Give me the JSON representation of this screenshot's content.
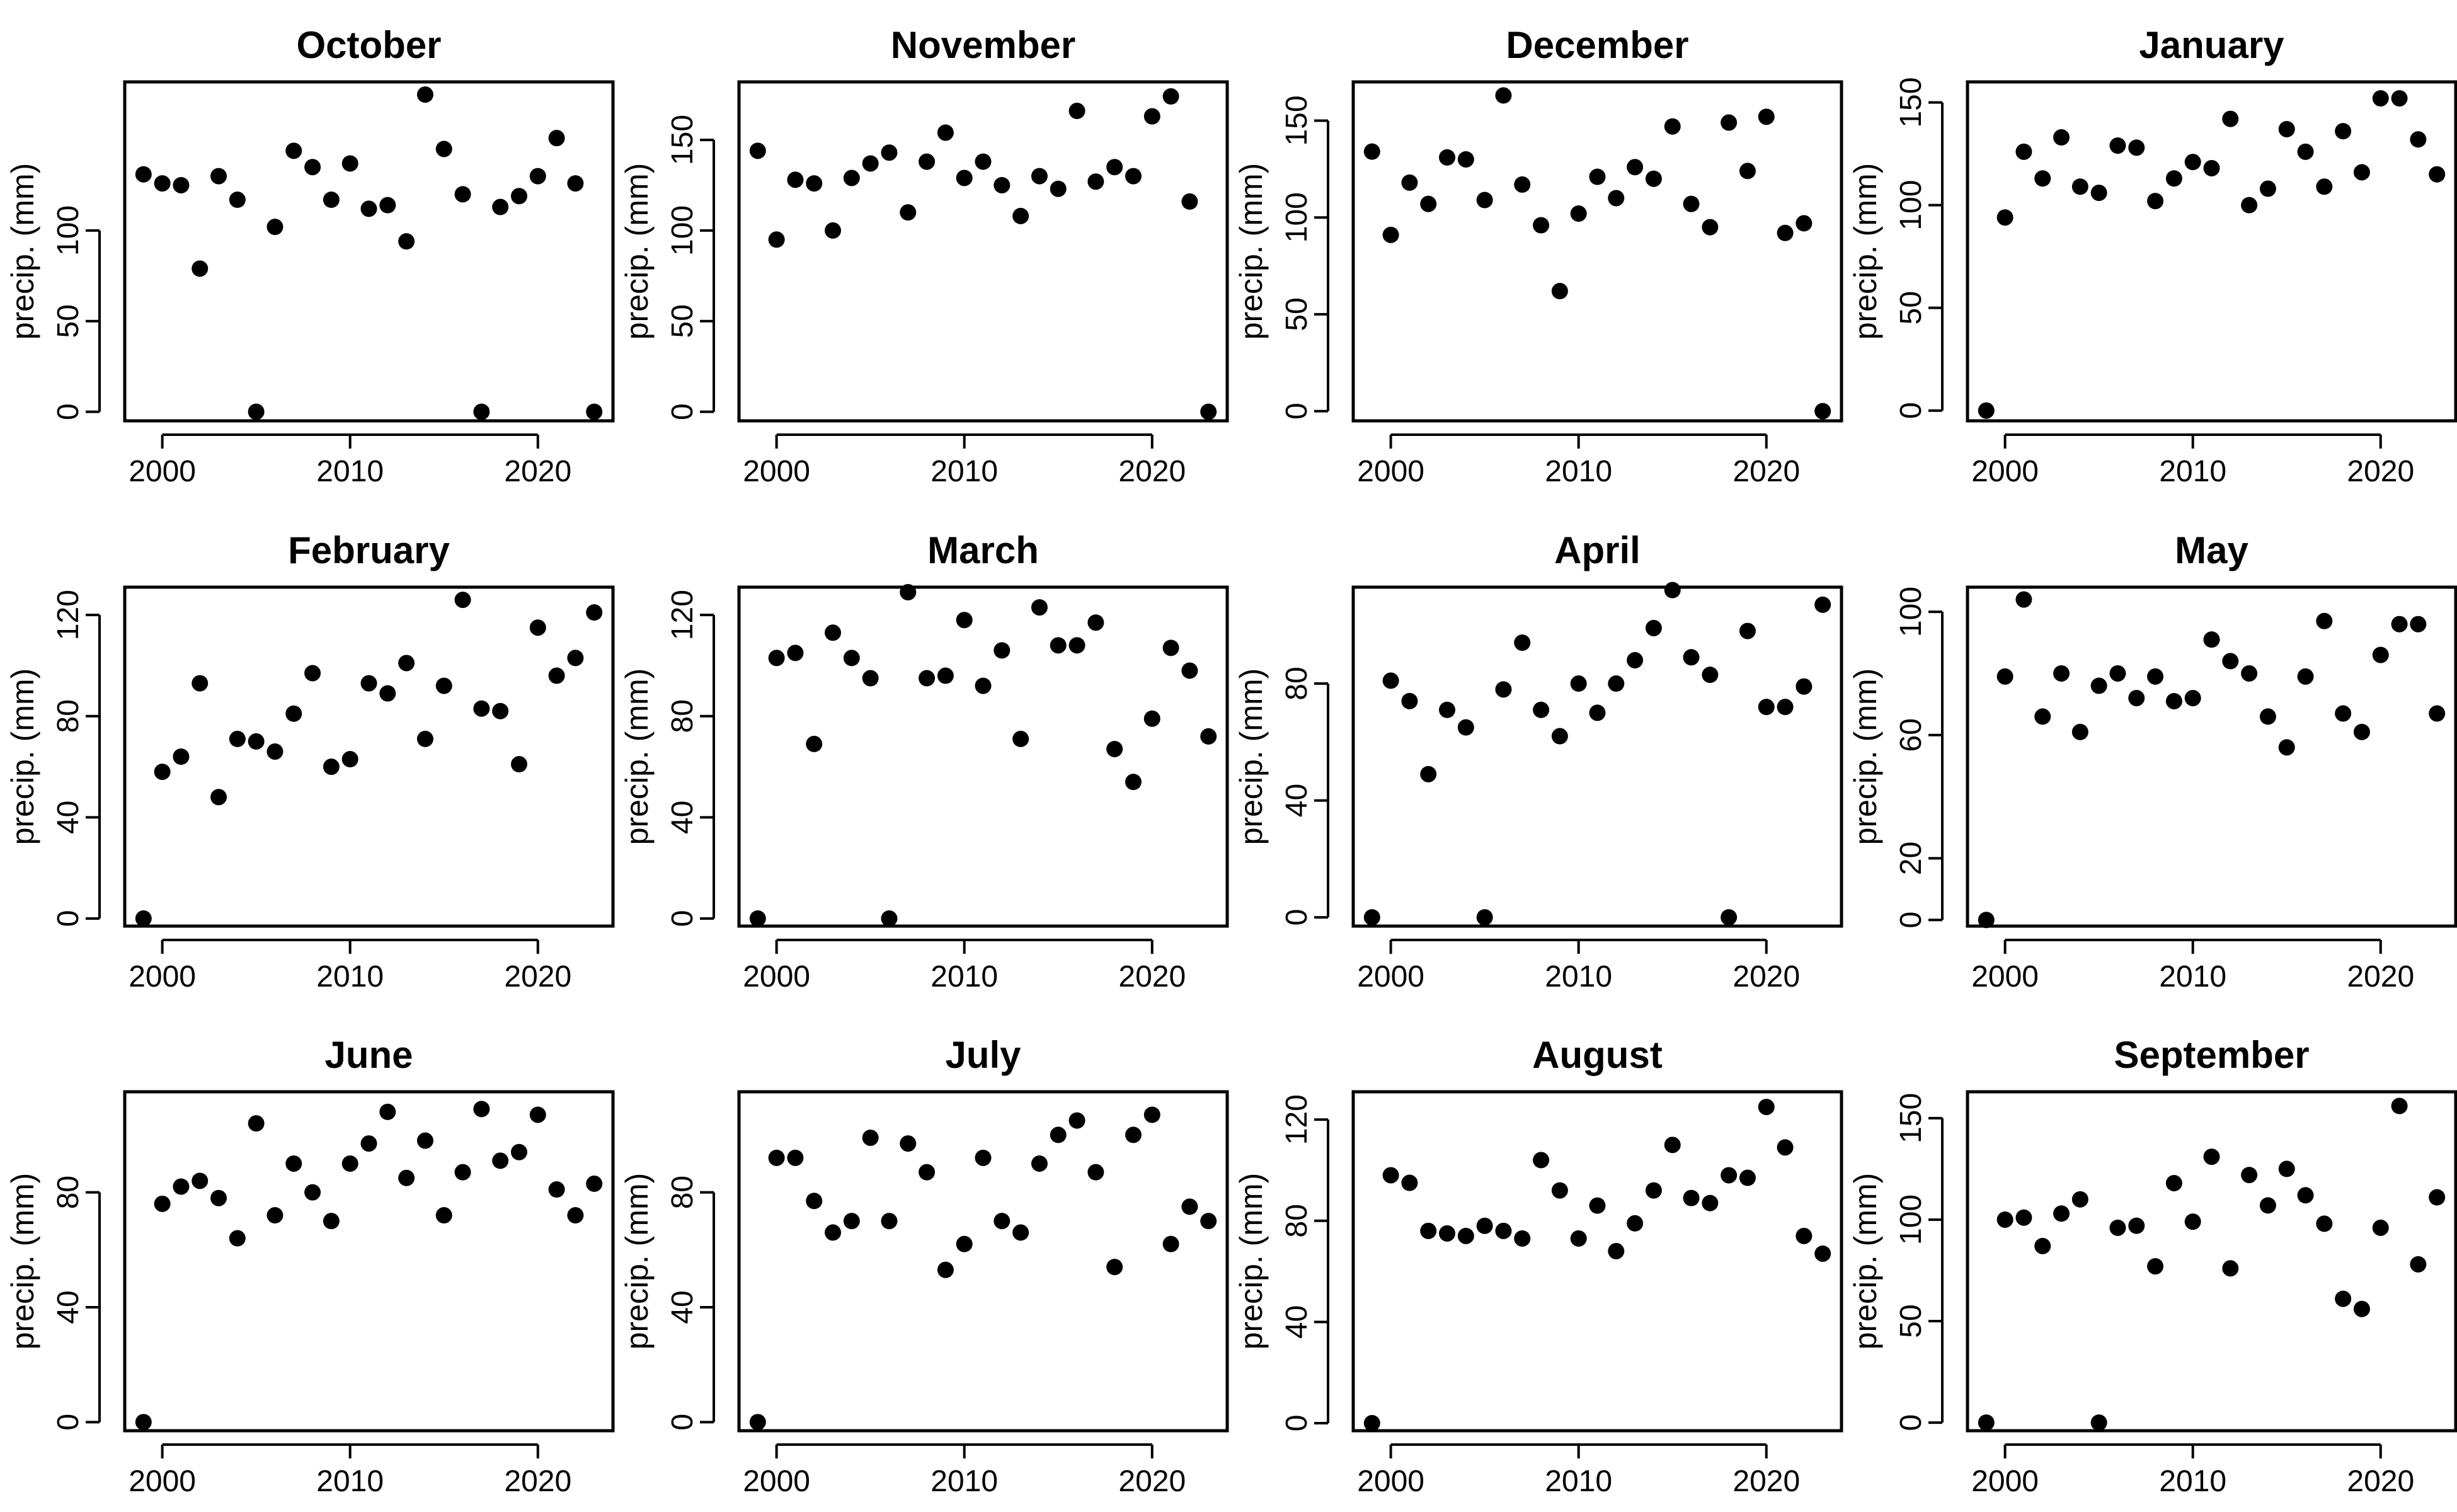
{
  "chart_data": [
    {
      "type": "scatter",
      "title": "October",
      "ylabel": "precip. (mm)",
      "xlim": [
        1998,
        2024
      ],
      "ylim": [
        -5,
        182
      ],
      "x_ticks": [
        2000,
        2010,
        2020
      ],
      "y_ticks": [
        0,
        50,
        100
      ],
      "x": [
        1999,
        2000,
        2001,
        2002,
        2003,
        2004,
        2005,
        2006,
        2007,
        2008,
        2009,
        2010,
        2011,
        2012,
        2013,
        2014,
        2015,
        2016,
        2017,
        2018,
        2019,
        2020,
        2021,
        2022,
        2023
      ],
      "y": [
        131,
        126,
        125,
        79,
        130,
        117,
        0,
        102,
        144,
        135,
        117,
        137,
        112,
        114,
        94,
        175,
        145,
        120,
        0,
        113,
        119,
        130,
        151,
        126,
        0
      ]
    },
    {
      "type": "scatter",
      "title": "November",
      "ylabel": "precip. (mm)",
      "xlim": [
        1998,
        2024
      ],
      "ylim": [
        -5,
        182
      ],
      "x_ticks": [
        2000,
        2010,
        2020
      ],
      "y_ticks": [
        0,
        50,
        100,
        150
      ],
      "x": [
        1999,
        2000,
        2001,
        2002,
        2003,
        2004,
        2005,
        2006,
        2007,
        2008,
        2009,
        2010,
        2011,
        2012,
        2013,
        2014,
        2015,
        2016,
        2017,
        2018,
        2019,
        2020,
        2021,
        2022,
        2023
      ],
      "y": [
        144,
        95,
        128,
        126,
        100,
        129,
        137,
        143,
        110,
        138,
        154,
        129,
        138,
        125,
        108,
        130,
        123,
        166,
        127,
        135,
        130,
        163,
        174,
        116,
        0
      ]
    },
    {
      "type": "scatter",
      "title": "December",
      "ylabel": "precip. (mm)",
      "xlim": [
        1998,
        2024
      ],
      "ylim": [
        -5,
        170
      ],
      "x_ticks": [
        2000,
        2010,
        2020
      ],
      "y_ticks": [
        0,
        50,
        100,
        150
      ],
      "x": [
        1999,
        2000,
        2001,
        2002,
        2003,
        2004,
        2005,
        2006,
        2007,
        2008,
        2009,
        2010,
        2011,
        2012,
        2013,
        2014,
        2015,
        2016,
        2017,
        2018,
        2019,
        2020,
        2021,
        2022,
        2023
      ],
      "y": [
        134,
        91,
        118,
        107,
        131,
        130,
        109,
        163,
        117,
        96,
        62,
        102,
        121,
        110,
        126,
        120,
        147,
        107,
        95,
        149,
        124,
        152,
        92,
        97,
        0
      ]
    },
    {
      "type": "scatter",
      "title": "January",
      "ylabel": "precip. (mm)",
      "xlim": [
        1998,
        2024
      ],
      "ylim": [
        -5,
        160
      ],
      "x_ticks": [
        2000,
        2010,
        2020
      ],
      "y_ticks": [
        0,
        50,
        100,
        150
      ],
      "x": [
        1999,
        2000,
        2001,
        2002,
        2003,
        2004,
        2005,
        2006,
        2007,
        2008,
        2009,
        2010,
        2011,
        2012,
        2013,
        2014,
        2015,
        2016,
        2017,
        2018,
        2019,
        2020,
        2021,
        2022,
        2023
      ],
      "y": [
        0,
        94,
        126,
        113,
        133,
        109,
        106,
        129,
        128,
        102,
        113,
        121,
        118,
        142,
        100,
        108,
        137,
        126,
        109,
        136,
        116,
        152,
        152,
        132,
        115
      ]
    },
    {
      "type": "scatter",
      "title": "February",
      "ylabel": "precip. (mm)",
      "xlim": [
        1998,
        2024
      ],
      "ylim": [
        -3,
        131
      ],
      "x_ticks": [
        2000,
        2010,
        2020
      ],
      "y_ticks": [
        0,
        40,
        80,
        120
      ],
      "x": [
        1999,
        2000,
        2001,
        2002,
        2003,
        2004,
        2005,
        2006,
        2007,
        2008,
        2009,
        2010,
        2011,
        2012,
        2013,
        2014,
        2015,
        2016,
        2017,
        2018,
        2019,
        2020,
        2021,
        2022,
        2023
      ],
      "y": [
        0,
        58,
        64,
        93,
        48,
        71,
        70,
        66,
        81,
        97,
        60,
        63,
        93,
        89,
        101,
        71,
        92,
        126,
        83,
        82,
        61,
        115,
        96,
        103,
        121
      ]
    },
    {
      "type": "scatter",
      "title": "March",
      "ylabel": "precip. (mm)",
      "xlim": [
        1998,
        2024
      ],
      "ylim": [
        -3,
        131
      ],
      "x_ticks": [
        2000,
        2010,
        2020
      ],
      "y_ticks": [
        0,
        40,
        80,
        120
      ],
      "x": [
        1999,
        2000,
        2001,
        2002,
        2003,
        2004,
        2005,
        2006,
        2007,
        2008,
        2009,
        2010,
        2011,
        2012,
        2013,
        2014,
        2015,
        2016,
        2017,
        2018,
        2019,
        2020,
        2021,
        2022,
        2023
      ],
      "y": [
        0,
        103,
        105,
        69,
        113,
        103,
        95,
        0,
        129,
        95,
        96,
        118,
        92,
        106,
        71,
        123,
        108,
        108,
        117,
        67,
        54,
        79,
        107,
        98,
        72
      ]
    },
    {
      "type": "scatter",
      "title": "April",
      "ylabel": "precip. (mm)",
      "xlim": [
        1998,
        2024
      ],
      "ylim": [
        -3,
        113
      ],
      "x_ticks": [
        2000,
        2010,
        2020
      ],
      "y_ticks": [
        0,
        40,
        80
      ],
      "x": [
        1999,
        2000,
        2001,
        2002,
        2003,
        2004,
        2005,
        2006,
        2007,
        2008,
        2009,
        2010,
        2011,
        2012,
        2013,
        2014,
        2015,
        2016,
        2017,
        2018,
        2019,
        2020,
        2021,
        2022,
        2023
      ],
      "y": [
        0,
        81,
        74,
        49,
        71,
        65,
        0,
        78,
        94,
        71,
        62,
        80,
        70,
        80,
        88,
        99,
        112,
        89,
        83,
        0,
        98,
        72,
        72,
        79,
        107
      ]
    },
    {
      "type": "scatter",
      "title": "May",
      "ylabel": "precip. (mm)",
      "xlim": [
        1998,
        2024
      ],
      "ylim": [
        -2,
        108
      ],
      "x_ticks": [
        2000,
        2010,
        2020
      ],
      "y_ticks": [
        0,
        20,
        60,
        100
      ],
      "x": [
        1999,
        2000,
        2001,
        2002,
        2003,
        2004,
        2005,
        2006,
        2007,
        2008,
        2009,
        2010,
        2011,
        2012,
        2013,
        2014,
        2015,
        2016,
        2017,
        2018,
        2019,
        2020,
        2021,
        2022,
        2023
      ],
      "y": [
        0,
        79,
        104,
        66,
        80,
        61,
        76,
        80,
        72,
        79,
        71,
        72,
        91,
        84,
        80,
        66,
        56,
        79,
        97,
        67,
        61,
        86,
        96,
        96,
        67
      ]
    },
    {
      "type": "scatter",
      "title": "June",
      "ylabel": "precip. (mm)",
      "xlim": [
        1998,
        2024
      ],
      "ylim": [
        -3,
        115
      ],
      "x_ticks": [
        2000,
        2010,
        2020
      ],
      "y_ticks": [
        0,
        40,
        80
      ],
      "x": [
        1999,
        2000,
        2001,
        2002,
        2003,
        2004,
        2005,
        2006,
        2007,
        2008,
        2009,
        2010,
        2011,
        2012,
        2013,
        2014,
        2015,
        2016,
        2017,
        2018,
        2019,
        2020,
        2021,
        2022,
        2023
      ],
      "y": [
        0,
        76,
        82,
        84,
        78,
        64,
        104,
        72,
        90,
        80,
        70,
        90,
        97,
        108,
        85,
        98,
        72,
        87,
        109,
        91,
        94,
        107,
        81,
        72,
        83
      ]
    },
    {
      "type": "scatter",
      "title": "July",
      "ylabel": "precip. (mm)",
      "xlim": [
        1998,
        2024
      ],
      "ylim": [
        -3,
        115
      ],
      "x_ticks": [
        2000,
        2010,
        2020
      ],
      "y_ticks": [
        0,
        40,
        80
      ],
      "x": [
        1999,
        2000,
        2001,
        2002,
        2003,
        2004,
        2005,
        2006,
        2007,
        2008,
        2009,
        2010,
        2011,
        2012,
        2013,
        2014,
        2015,
        2016,
        2017,
        2018,
        2019,
        2020,
        2021,
        2022,
        2023
      ],
      "y": [
        0,
        92,
        92,
        77,
        66,
        70,
        99,
        70,
        97,
        87,
        53,
        62,
        92,
        70,
        66,
        90,
        100,
        105,
        87,
        54,
        100,
        107,
        62,
        75,
        70
      ]
    },
    {
      "type": "scatter",
      "title": "August",
      "ylabel": "precip. (mm)",
      "xlim": [
        1998,
        2024
      ],
      "ylim": [
        -3,
        131
      ],
      "x_ticks": [
        2000,
        2010,
        2020
      ],
      "y_ticks": [
        0,
        40,
        80,
        120
      ],
      "x": [
        1999,
        2000,
        2001,
        2002,
        2003,
        2004,
        2005,
        2006,
        2007,
        2008,
        2009,
        2010,
        2011,
        2012,
        2013,
        2014,
        2015,
        2016,
        2017,
        2018,
        2019,
        2020,
        2021,
        2022,
        2023
      ],
      "y": [
        0,
        98,
        95,
        76,
        75,
        74,
        78,
        76,
        73,
        104,
        92,
        73,
        86,
        68,
        79,
        92,
        110,
        89,
        87,
        98,
        97,
        125,
        109,
        74,
        67
      ]
    },
    {
      "type": "scatter",
      "title": "September",
      "ylabel": "precip. (mm)",
      "xlim": [
        1998,
        2024
      ],
      "ylim": [
        -4,
        163
      ],
      "x_ticks": [
        2000,
        2010,
        2020
      ],
      "y_ticks": [
        0,
        50,
        100,
        150
      ],
      "x": [
        1999,
        2000,
        2001,
        2002,
        2003,
        2004,
        2005,
        2006,
        2007,
        2008,
        2009,
        2010,
        2011,
        2012,
        2013,
        2014,
        2015,
        2016,
        2017,
        2018,
        2019,
        2020,
        2021,
        2022,
        2023
      ],
      "y": [
        0,
        100,
        101,
        87,
        103,
        110,
        0,
        96,
        97,
        77,
        118,
        99,
        131,
        76,
        122,
        107,
        125,
        112,
        98,
        61,
        56,
        96,
        156,
        78,
        111
      ]
    }
  ]
}
